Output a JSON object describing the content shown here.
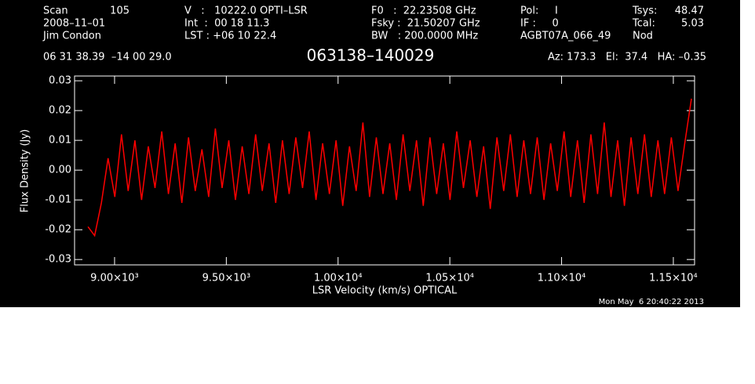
{
  "header": {
    "scan_label": "Scan",
    "scan": "105",
    "date": "2008–11–01",
    "observer": "Jim Condon",
    "velocity": "V   :   10222.0 OPTI–LSR",
    "int": "Int  :  00 18 11.3",
    "lst": "LST : +06 10 22.4",
    "f0": "F0   :  22.23508 GHz",
    "fsky": "Fsky :  21.50207 GHz",
    "bw": "BW   : 200.0000 MHz",
    "pol": "Pol:     I",
    "if": "IF :     0",
    "project": "AGBT07A_066_49",
    "tsys_label": "Tsys:",
    "tsys": "48.47",
    "tcal_label": "Tcal:",
    "tcal": "5.03",
    "mode": "Nod",
    "coords": "06 31 38.39  –14 00 29.0",
    "source": "063138–140029",
    "azel": "Az: 173.3   El:  37.4   HA: –0.35",
    "timestamp": "Mon May  6 20:40:22 2013"
  },
  "chart_data": {
    "type": "line",
    "x_label": "LSR Velocity (km/s) OPTICAL",
    "y_label": "Flux Density (Jy)",
    "xlim": [
      8821,
      11595
    ],
    "ylim": [
      -0.0318,
      0.0316
    ],
    "xticks": [
      {
        "value": 9000,
        "label": "9.00×10³"
      },
      {
        "value": 9500,
        "label": "9.50×10³"
      },
      {
        "value": 10000,
        "label": "1.00×10⁴"
      },
      {
        "value": 10500,
        "label": "1.05×10⁴"
      },
      {
        "value": 11000,
        "label": "1.10×10⁴"
      },
      {
        "value": 11500,
        "label": "1.15×10⁴"
      }
    ],
    "yticks": [
      -0.03,
      -0.02,
      -0.01,
      {
        "value": 0,
        "label": "0.00"
      },
      0.01,
      0.02,
      0.03
    ],
    "x": [
      8881,
      8911,
      8941,
      8971,
      9001,
      9031,
      9061,
      9091,
      9121,
      9151,
      9181,
      9211,
      9241,
      9271,
      9301,
      9331,
      9361,
      9391,
      9421,
      9451,
      9481,
      9511,
      9541,
      9571,
      9601,
      9631,
      9661,
      9691,
      9721,
      9751,
      9781,
      9811,
      9841,
      9871,
      9901,
      9931,
      9961,
      9991,
      10021,
      10051,
      10081,
      10111,
      10141,
      10171,
      10201,
      10231,
      10261,
      10291,
      10321,
      10351,
      10381,
      10411,
      10441,
      10471,
      10501,
      10531,
      10561,
      10591,
      10621,
      10651,
      10681,
      10711,
      10741,
      10771,
      10801,
      10831,
      10861,
      10891,
      10921,
      10951,
      10981,
      11011,
      11041,
      11071,
      11101,
      11131,
      11161,
      11191,
      11221,
      11251,
      11281,
      11311,
      11341,
      11371,
      11401,
      11431,
      11461,
      11491,
      11521,
      11551,
      11581
    ],
    "series": [
      {
        "name": "Flux Density",
        "color": "#ff0000",
        "values": [
          -0.019,
          -0.022,
          -0.011,
          0.004,
          -0.009,
          0.012,
          -0.007,
          0.01,
          -0.01,
          0.008,
          -0.006,
          0.013,
          -0.008,
          0.009,
          -0.011,
          0.011,
          -0.007,
          0.007,
          -0.009,
          0.014,
          -0.006,
          0.01,
          -0.01,
          0.008,
          -0.008,
          0.012,
          -0.007,
          0.009,
          -0.011,
          0.01,
          -0.008,
          0.011,
          -0.006,
          0.013,
          -0.01,
          0.009,
          -0.008,
          0.01,
          -0.012,
          0.008,
          -0.007,
          0.016,
          -0.009,
          0.011,
          -0.008,
          0.009,
          -0.01,
          0.012,
          -0.007,
          0.01,
          -0.012,
          0.011,
          -0.008,
          0.009,
          -0.01,
          0.013,
          -0.006,
          0.01,
          -0.009,
          0.008,
          -0.013,
          0.011,
          -0.007,
          0.012,
          -0.009,
          0.01,
          -0.008,
          0.011,
          -0.01,
          0.009,
          -0.007,
          0.013,
          -0.009,
          0.01,
          -0.011,
          0.012,
          -0.008,
          0.016,
          -0.009,
          0.01,
          -0.012,
          0.011,
          -0.008,
          0.012,
          -0.009,
          0.01,
          -0.008,
          0.011,
          -0.007,
          0.009,
          0.024
        ]
      }
    ]
  }
}
